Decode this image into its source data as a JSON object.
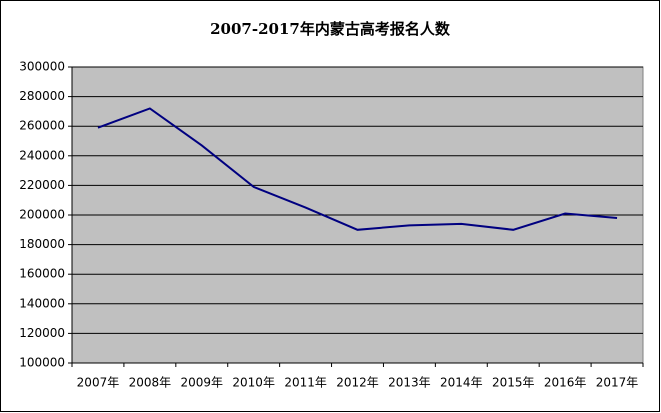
{
  "chart_data": {
    "type": "line",
    "title": "2007-2017年内蒙古高考报名人数",
    "categories": [
      "2007年",
      "2008年",
      "2009年",
      "2010年",
      "2011年",
      "2012年",
      "2013年",
      "2014年",
      "2015年",
      "2016年",
      "2017年"
    ],
    "series": [
      {
        "name": "报名人数",
        "color": "#000080",
        "values": [
          259000,
          272000,
          247000,
          219000,
          205000,
          190000,
          193000,
          194000,
          190000,
          201000,
          198000
        ]
      }
    ],
    "ylim": [
      100000,
      300000
    ],
    "yticks": [
      100000,
      120000,
      140000,
      160000,
      180000,
      200000,
      220000,
      240000,
      260000,
      280000,
      300000
    ],
    "grid": true,
    "plot_background": "#c0c0c0",
    "grid_color": "#000000"
  }
}
